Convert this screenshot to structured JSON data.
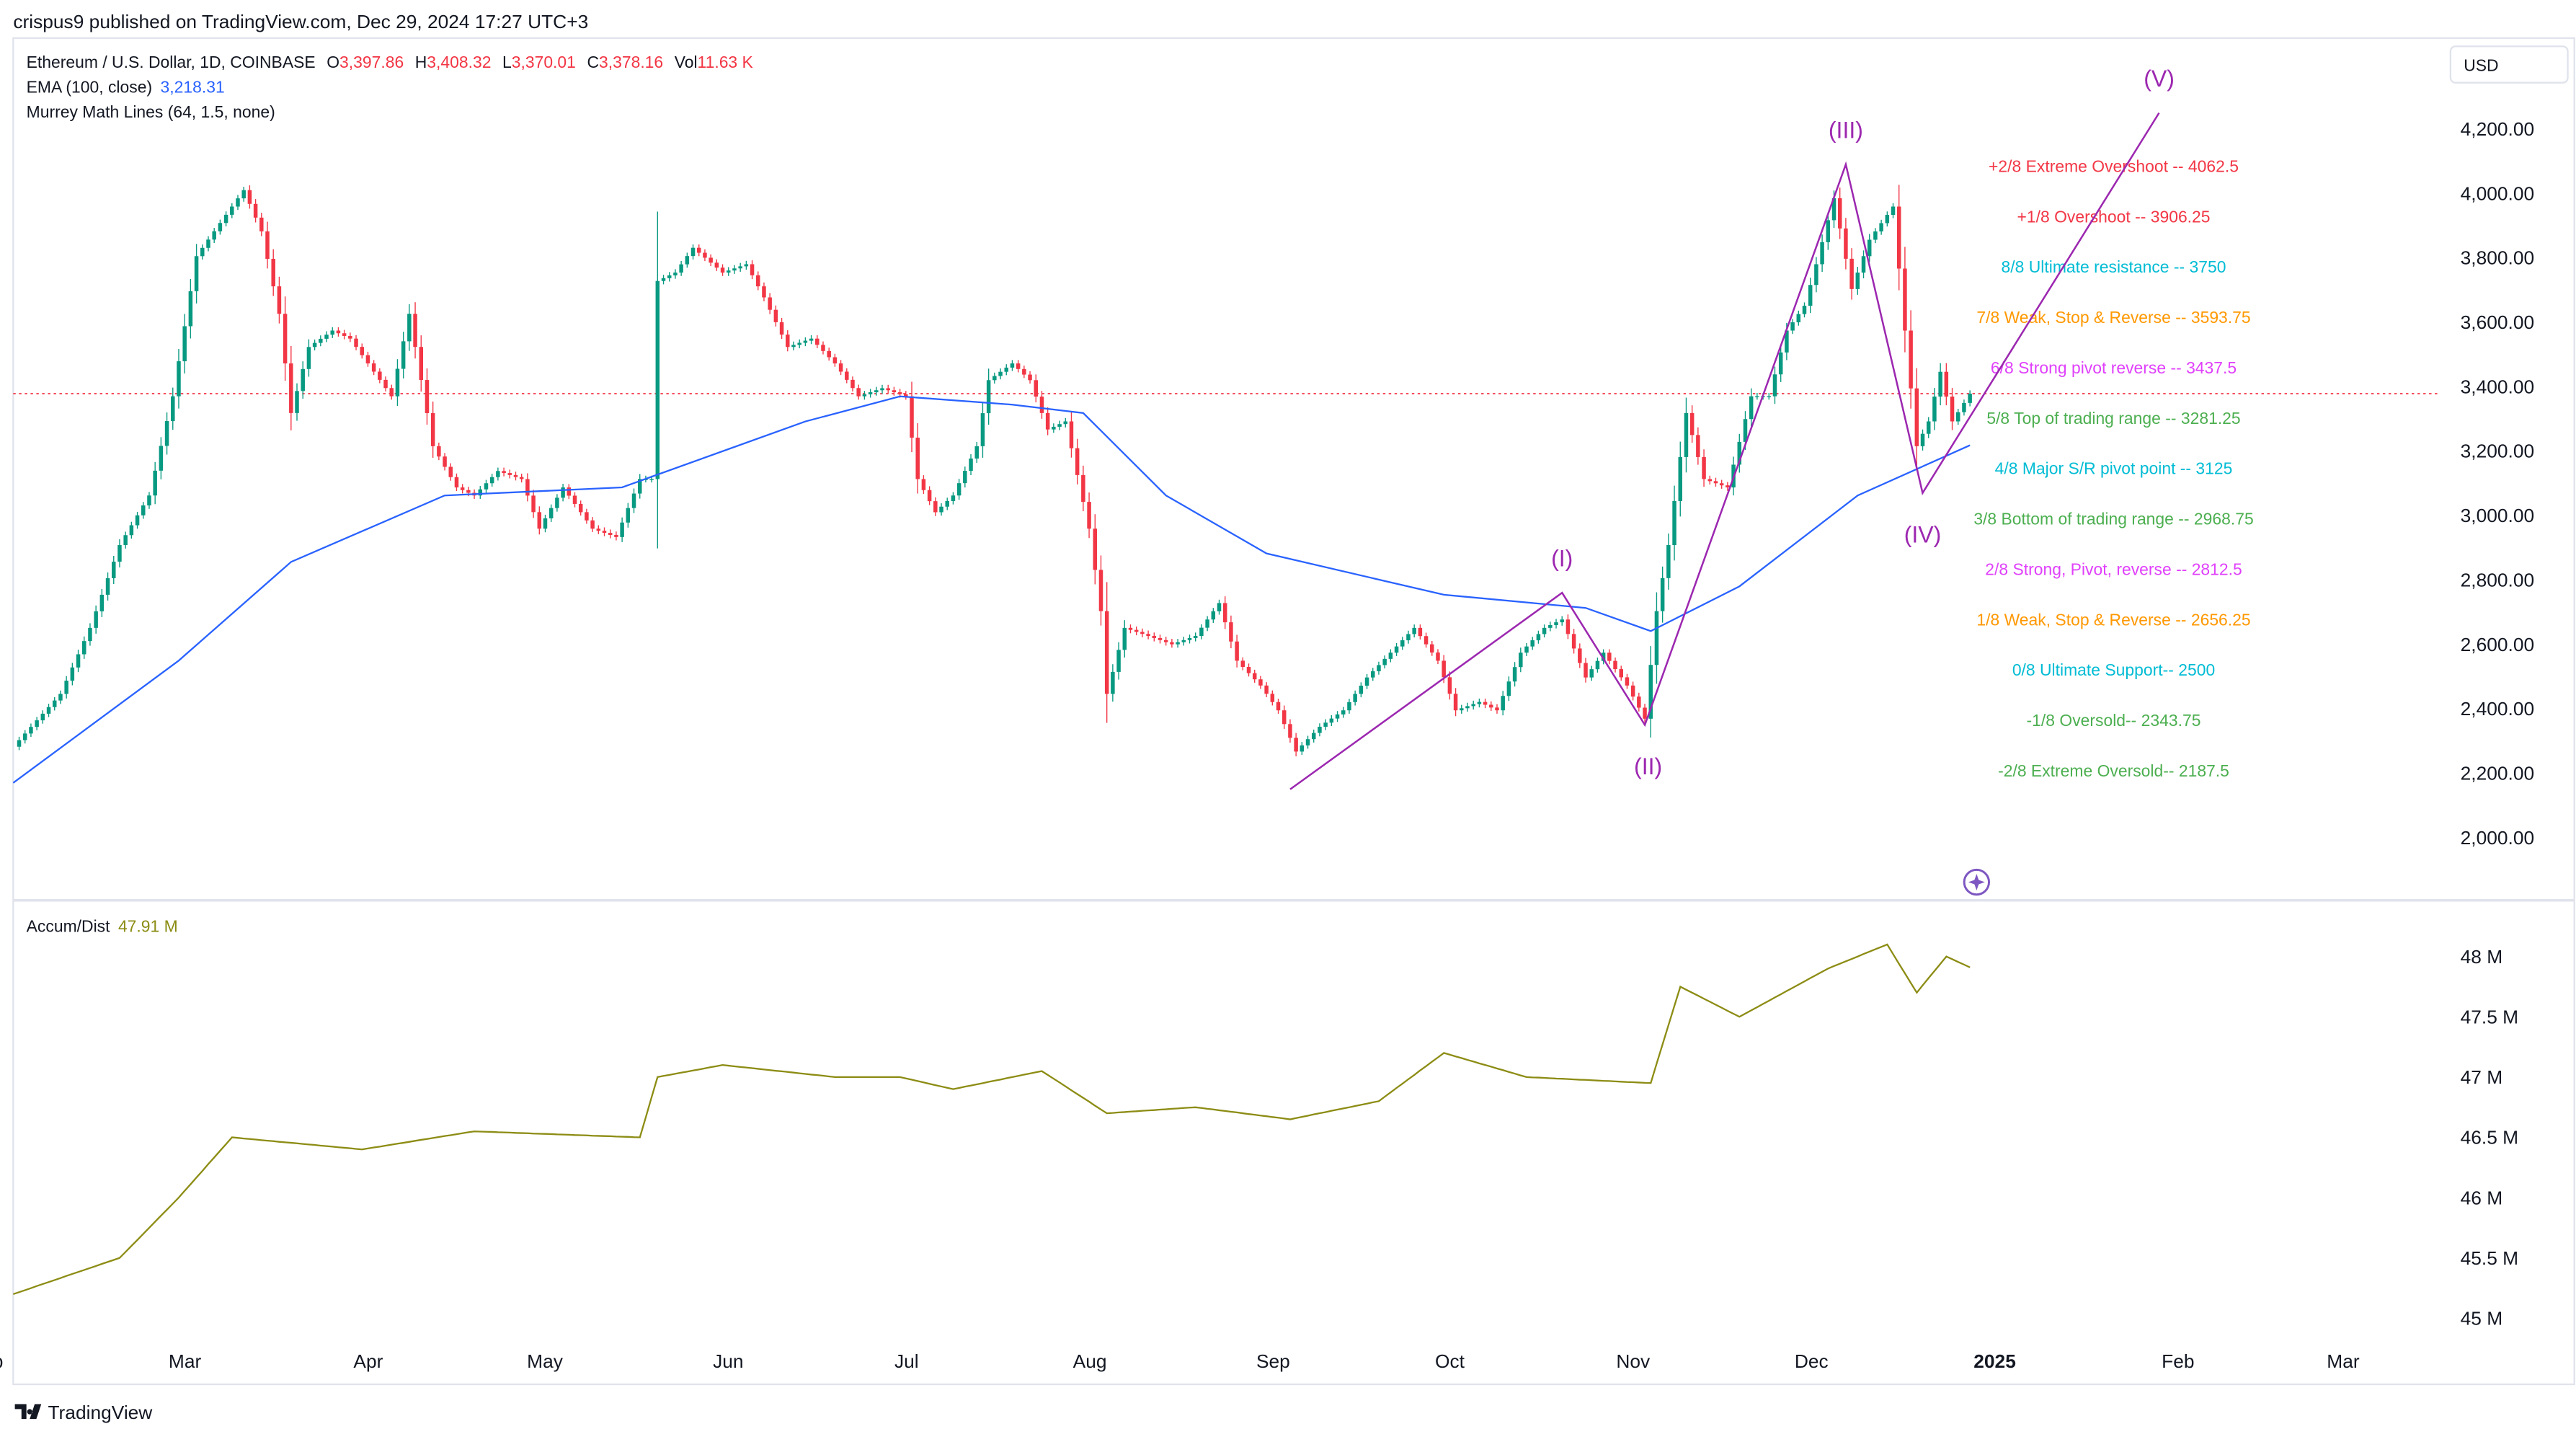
{
  "header": {
    "published": "crispus9 published on TradingView.com, Dec 29, 2024 17:27 UTC+3"
  },
  "legend": {
    "symbol": "Ethereum / U.S. Dollar, 1D, COINBASE",
    "o_label": "O",
    "o": "3,397.86",
    "h_label": "H",
    "h": "3,408.32",
    "l_label": "L",
    "l": "3,370.01",
    "c_label": "C",
    "c": "3,378.16",
    "vol_label": "Vol",
    "vol": "11.63 K",
    "ema_label": "EMA (100, close)",
    "ema_value": "3,218.31",
    "murrey_label": "Murrey Math Lines (64, 1.5, none)"
  },
  "currency": "USD",
  "ad_pane": {
    "label": "Accum/Dist",
    "value": "47.91 M"
  },
  "footer": {
    "brand": "TradingView"
  },
  "colors": {
    "up": "#089981",
    "down": "#f23645",
    "ema": "#2962ff",
    "ad": "#8c8c14",
    "wave": "#9c27b0"
  },
  "chart_data": [
    {
      "type": "candlestick",
      "ylim": [
        1900,
        4300
      ],
      "y_ticks": [
        "4,200.00",
        "4,000.00",
        "3,800.00",
        "3,600.00",
        "3,400.00",
        "3,200.00",
        "3,000.00",
        "2,800.00",
        "2,600.00",
        "2,400.00",
        "2,200.00",
        "2,000.00"
      ],
      "x_ticks": [
        "Feb",
        "Mar",
        "Apr",
        "May",
        "Jun",
        "Jul",
        "Aug",
        "Sep",
        "Oct",
        "Nov",
        "Dec",
        "2025",
        "Feb",
        "Mar"
      ],
      "last_price": 3378.16,
      "closes": [
        [
          "2024-02-02",
          2282
        ],
        [
          "2024-02-10",
          2446
        ],
        [
          "2024-02-15",
          2651
        ],
        [
          "2024-02-20",
          2908
        ],
        [
          "2024-02-25",
          3062
        ],
        [
          "2024-02-29",
          3370
        ],
        [
          "2024-03-04",
          3805
        ],
        [
          "2024-03-08",
          3908
        ],
        [
          "2024-03-12",
          4010
        ],
        [
          "2024-03-15",
          3882
        ],
        [
          "2024-03-18",
          3626
        ],
        [
          "2024-03-20",
          3318
        ],
        [
          "2024-03-23",
          3523
        ],
        [
          "2024-03-27",
          3574
        ],
        [
          "2024-03-30",
          3549
        ],
        [
          "2024-04-02",
          3472
        ],
        [
          "2024-04-06",
          3370
        ],
        [
          "2024-04-09",
          3626
        ],
        [
          "2024-04-13",
          3215
        ],
        [
          "2024-04-17",
          3087
        ],
        [
          "2024-04-20",
          3062
        ],
        [
          "2024-04-24",
          3138
        ],
        [
          "2024-04-28",
          3113
        ],
        [
          "2024-05-01",
          2959
        ],
        [
          "2024-05-05",
          3087
        ],
        [
          "2024-05-10",
          2959
        ],
        [
          "2024-05-14",
          2933
        ],
        [
          "2024-05-18",
          3113
        ],
        [
          "2024-05-20",
          3113
        ],
        [
          "2024-05-21",
          3728
        ],
        [
          "2024-05-24",
          3754
        ],
        [
          "2024-05-27",
          3831
        ],
        [
          "2024-06-01",
          3754
        ],
        [
          "2024-06-05",
          3780
        ],
        [
          "2024-06-08",
          3677
        ],
        [
          "2024-06-12",
          3523
        ],
        [
          "2024-06-16",
          3549
        ],
        [
          "2024-06-20",
          3472
        ],
        [
          "2024-06-24",
          3370
        ],
        [
          "2024-06-28",
          3395
        ],
        [
          "2024-07-02",
          3370
        ],
        [
          "2024-07-04",
          3113
        ],
        [
          "2024-07-07",
          3010
        ],
        [
          "2024-07-10",
          3062
        ],
        [
          "2024-07-14",
          3215
        ],
        [
          "2024-07-16",
          3420
        ],
        [
          "2024-07-20",
          3472
        ],
        [
          "2024-07-23",
          3420
        ],
        [
          "2024-07-26",
          3267
        ],
        [
          "2024-07-29",
          3292
        ],
        [
          "2024-08-02",
          2959
        ],
        [
          "2024-08-04",
          2703
        ],
        [
          "2024-08-05",
          2446
        ],
        [
          "2024-08-08",
          2651
        ],
        [
          "2024-08-12",
          2626
        ],
        [
          "2024-08-16",
          2600
        ],
        [
          "2024-08-20",
          2626
        ],
        [
          "2024-08-24",
          2728
        ],
        [
          "2024-08-27",
          2549
        ],
        [
          "2024-08-31",
          2472
        ],
        [
          "2024-09-03",
          2395
        ],
        [
          "2024-09-06",
          2267
        ],
        [
          "2024-09-10",
          2344
        ],
        [
          "2024-09-14",
          2395
        ],
        [
          "2024-09-18",
          2497
        ],
        [
          "2024-09-22",
          2574
        ],
        [
          "2024-09-26",
          2651
        ],
        [
          "2024-09-30",
          2549
        ],
        [
          "2024-10-03",
          2395
        ],
        [
          "2024-10-07",
          2421
        ],
        [
          "2024-10-10",
          2395
        ],
        [
          "2024-10-14",
          2574
        ],
        [
          "2024-10-18",
          2651
        ],
        [
          "2024-10-21",
          2677
        ],
        [
          "2024-10-25",
          2497
        ],
        [
          "2024-10-28",
          2574
        ],
        [
          "2024-11-01",
          2472
        ],
        [
          "2024-11-04",
          2369
        ],
        [
          "2024-11-06",
          2703
        ],
        [
          "2024-11-08",
          2908
        ],
        [
          "2024-11-11",
          3318
        ],
        [
          "2024-11-14",
          3113
        ],
        [
          "2024-11-18",
          3087
        ],
        [
          "2024-11-22",
          3370
        ],
        [
          "2024-11-25",
          3370
        ],
        [
          "2024-11-28",
          3574
        ],
        [
          "2024-12-01",
          3651
        ],
        [
          "2024-12-03",
          3780
        ],
        [
          "2024-12-06",
          3985
        ],
        [
          "2024-12-09",
          3703
        ],
        [
          "2024-12-12",
          3856
        ],
        [
          "2024-12-16",
          3959
        ],
        [
          "2024-12-18",
          3574
        ],
        [
          "2024-12-20",
          3215
        ],
        [
          "2024-12-22",
          3292
        ],
        [
          "2024-12-24",
          3446
        ],
        [
          "2024-12-26",
          3292
        ],
        [
          "2024-12-29",
          3378
        ]
      ],
      "ema_100": [
        [
          "2024-02-02",
          2170
        ],
        [
          "2024-03-01",
          2549
        ],
        [
          "2024-03-20",
          2856
        ],
        [
          "2024-04-15",
          3062
        ],
        [
          "2024-05-15",
          3087
        ],
        [
          "2024-06-15",
          3292
        ],
        [
          "2024-07-01",
          3370
        ],
        [
          "2024-07-20",
          3344
        ],
        [
          "2024-08-01",
          3318
        ],
        [
          "2024-08-15",
          3062
        ],
        [
          "2024-09-01",
          2882
        ],
        [
          "2024-10-01",
          2754
        ],
        [
          "2024-10-25",
          2713
        ],
        [
          "2024-11-05",
          2641
        ],
        [
          "2024-11-20",
          2780
        ],
        [
          "2024-12-10",
          3062
        ],
        [
          "2024-12-29",
          3218
        ]
      ],
      "murrey_lines": [
        {
          "label": "+2/8 Extreme Overshoot --  4062.5",
          "color": "#f23645",
          "value": 4062.5
        },
        {
          "label": "+1/8 Overshoot --  3906.25",
          "color": "#f23645",
          "value": 3906.25
        },
        {
          "label": "8/8 Ultimate resistance --  3750",
          "color": "#00bcd4",
          "value": 3750
        },
        {
          "label": "7/8 Weak, Stop & Reverse --  3593.75",
          "color": "#ff9800",
          "value": 3593.75
        },
        {
          "label": "6/8 Strong pivot reverse --  3437.5",
          "color": "#e040fb",
          "value": 3437.5
        },
        {
          "label": "5/8 Top of trading range --  3281.25",
          "color": "#4caf50",
          "value": 3281.25
        },
        {
          "label": "4/8 Major S/R pivot point --  3125",
          "color": "#00bcd4",
          "value": 3125
        },
        {
          "label": "3/8 Bottom of trading range --  2968.75",
          "color": "#4caf50",
          "value": 2968.75
        },
        {
          "label": "2/8 Strong, Pivot, reverse --  2812.5",
          "color": "#e040fb",
          "value": 2812.5
        },
        {
          "label": "1/8 Weak, Stop & Reverse --  2656.25",
          "color": "#ff9800",
          "value": 2656.25
        },
        {
          "label": "0/8 Ultimate Support--  2500",
          "color": "#00bcd4",
          "value": 2500
        },
        {
          "label": "-1/8 Oversold--  2343.75",
          "color": "#4caf50",
          "value": 2343.75
        },
        {
          "label": "-2/8 Extreme Oversold--  2187.5",
          "color": "#4caf50",
          "value": 2187.5
        }
      ],
      "elliott_wave": [
        {
          "label": "",
          "date": "2024-09-05",
          "price": 2150
        },
        {
          "label": "(I)",
          "date": "2024-10-21",
          "price": 2760
        },
        {
          "label": "(II)",
          "date": "2024-11-04",
          "price": 2350
        },
        {
          "label": "(III)",
          "date": "2024-12-08",
          "price": 4090
        },
        {
          "label": "(IV)",
          "date": "2024-12-21",
          "price": 3070
        },
        {
          "label": "(V)",
          "date": "2025-01-30",
          "price": 4250
        }
      ]
    },
    {
      "type": "line",
      "title": "Accum/Dist",
      "ylim": [
        44.9,
        48.2
      ],
      "y_ticks": [
        "48 M",
        "47.5 M",
        "47 M",
        "46.5 M",
        "46 M",
        "45.5 M",
        "45 M"
      ],
      "values": [
        [
          "2024-02-02",
          45.2
        ],
        [
          "2024-02-20",
          45.5
        ],
        [
          "2024-03-01",
          46.0
        ],
        [
          "2024-03-10",
          46.5
        ],
        [
          "2024-04-01",
          46.4
        ],
        [
          "2024-04-20",
          46.55
        ],
        [
          "2024-05-18",
          46.5
        ],
        [
          "2024-05-21",
          47.0
        ],
        [
          "2024-06-01",
          47.1
        ],
        [
          "2024-06-20",
          47.0
        ],
        [
          "2024-07-01",
          47.0
        ],
        [
          "2024-07-10",
          46.9
        ],
        [
          "2024-07-25",
          47.05
        ],
        [
          "2024-08-05",
          46.7
        ],
        [
          "2024-08-20",
          46.75
        ],
        [
          "2024-09-05",
          46.65
        ],
        [
          "2024-09-20",
          46.8
        ],
        [
          "2024-10-01",
          47.2
        ],
        [
          "2024-10-15",
          47.0
        ],
        [
          "2024-11-05",
          46.95
        ],
        [
          "2024-11-10",
          47.75
        ],
        [
          "2024-11-20",
          47.5
        ],
        [
          "2024-12-05",
          47.9
        ],
        [
          "2024-12-15",
          48.1
        ],
        [
          "2024-12-20",
          47.7
        ],
        [
          "2024-12-25",
          48.0
        ],
        [
          "2024-12-29",
          47.91
        ]
      ]
    }
  ]
}
